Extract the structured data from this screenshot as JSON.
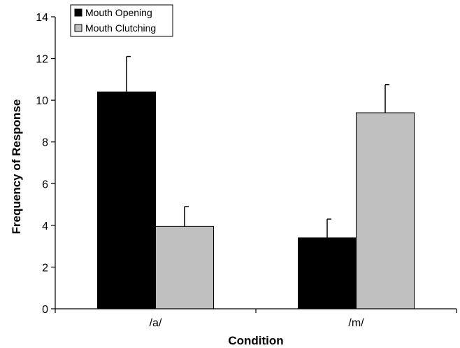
{
  "chart_data": {
    "type": "bar",
    "xlabel": "Condition",
    "ylabel": "Frequency of Response",
    "categories": [
      "/a/",
      "/m/"
    ],
    "ylim": [
      0,
      14
    ],
    "yticks": [
      0,
      2,
      4,
      6,
      8,
      10,
      12,
      14
    ],
    "grid": false,
    "legend_position": "top-left",
    "series": [
      {
        "name": "Mouth Opening",
        "color": "#000000",
        "values": [
          10.4,
          3.4
        ],
        "errors": [
          1.7,
          0.9
        ]
      },
      {
        "name": "Mouth Clutching",
        "color": "#c0c0c0",
        "values": [
          3.95,
          9.4
        ],
        "errors": [
          0.95,
          1.35
        ]
      }
    ]
  }
}
